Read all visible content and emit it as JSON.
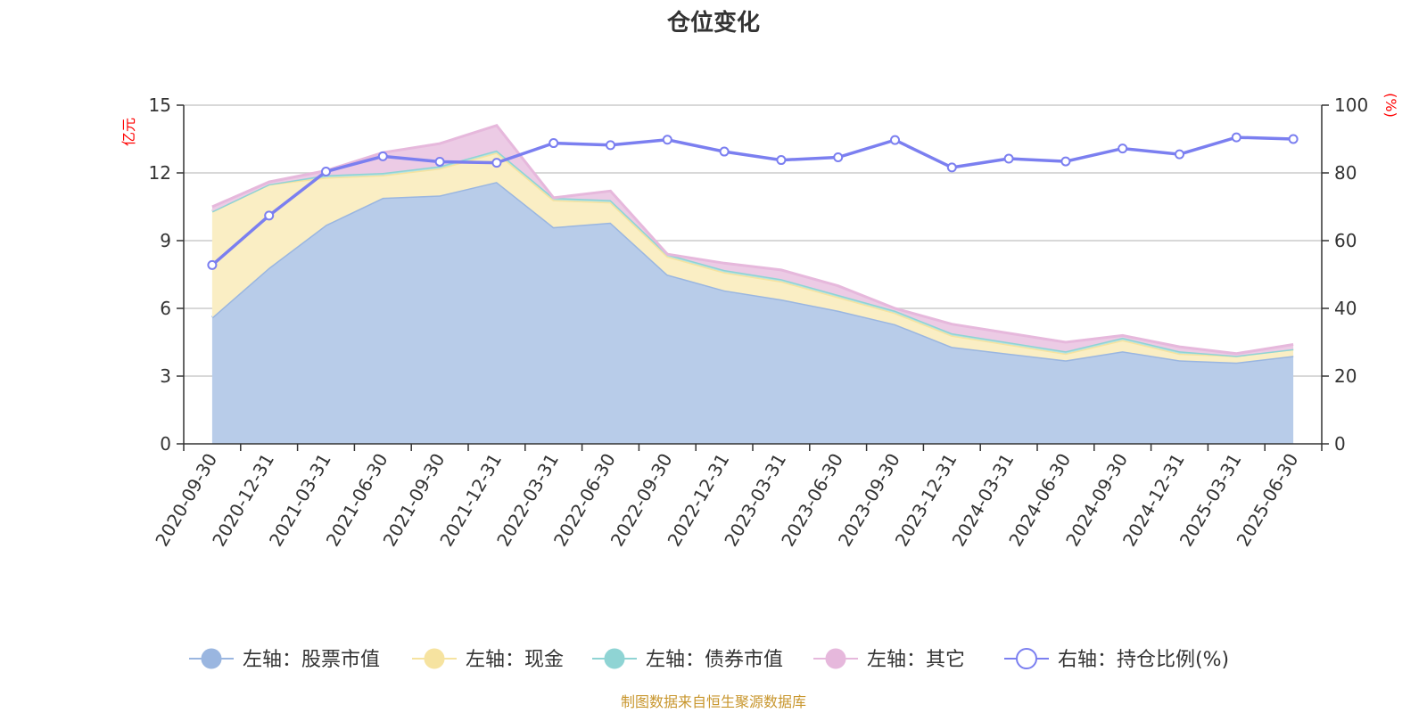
{
  "chart_data": {
    "type": "area",
    "title": "仓位变化",
    "source": "制图数据来自恒生聚源数据库",
    "left_axis": {
      "unit": "亿元",
      "range": [
        0,
        15
      ],
      "ticks": [
        "0",
        "3",
        "6",
        "9",
        "12",
        "15"
      ]
    },
    "right_axis": {
      "unit": "(%)",
      "range": [
        0,
        100
      ],
      "ticks": [
        "0",
        "20",
        "40",
        "60",
        "80",
        "100"
      ]
    },
    "categories": [
      "2020-09-30",
      "2020-12-31",
      "2021-03-31",
      "2021-06-30",
      "2021-09-30",
      "2021-12-31",
      "2022-03-31",
      "2022-06-30",
      "2022-09-30",
      "2022-12-31",
      "2023-03-31",
      "2023-06-30",
      "2023-09-30",
      "2023-12-31",
      "2024-03-31",
      "2024-06-30",
      "2024-09-30",
      "2024-12-31",
      "2025-03-31",
      "2025-06-30"
    ],
    "stacked_series": [
      {
        "name": "左轴：股票市值",
        "color": "#9ab6e0",
        "fill": "#b8cce9",
        "values": [
          5.6,
          7.8,
          9.7,
          10.9,
          11.0,
          11.6,
          9.6,
          9.8,
          7.5,
          6.8,
          6.4,
          5.9,
          5.3,
          4.3,
          4.0,
          3.7,
          4.1,
          3.7,
          3.6,
          3.9
        ]
      },
      {
        "name": "左轴：现金",
        "color": "#f6e3a0",
        "fill": "#faeec4",
        "values": [
          4.7,
          3.7,
          2.1,
          1.0,
          1.2,
          1.3,
          1.2,
          0.9,
          0.8,
          0.8,
          0.8,
          0.6,
          0.5,
          0.5,
          0.4,
          0.3,
          0.5,
          0.3,
          0.3,
          0.3
        ]
      },
      {
        "name": "左轴：债券市值",
        "color": "#8fd4d4",
        "fill": "#b5e2e0",
        "values": [
          0.0,
          0.0,
          0.1,
          0.1,
          0.1,
          0.1,
          0.1,
          0.1,
          0.1,
          0.1,
          0.1,
          0.1,
          0.1,
          0.1,
          0.1,
          0.1,
          0.1,
          0.1,
          0.0,
          0.0
        ]
      },
      {
        "name": "左轴：其它",
        "color": "#e6b8dc",
        "fill": "#eccbe5",
        "values": [
          0.2,
          0.1,
          0.2,
          0.9,
          1.0,
          1.1,
          0.0,
          0.4,
          0.0,
          0.3,
          0.4,
          0.4,
          0.1,
          0.4,
          0.4,
          0.4,
          0.1,
          0.2,
          0.1,
          0.2
        ]
      }
    ],
    "line_series": [
      {
        "name": "右轴：持仓比例(%)",
        "color": "#7b7ff0",
        "values": [
          52.8,
          67.4,
          80.4,
          84.9,
          83.3,
          83.0,
          88.8,
          88.2,
          89.8,
          86.3,
          83.8,
          84.6,
          89.7,
          81.6,
          84.2,
          83.4,
          87.2,
          85.5,
          90.5,
          90.0
        ]
      }
    ],
    "grid": true,
    "legend_position": "bottom"
  }
}
